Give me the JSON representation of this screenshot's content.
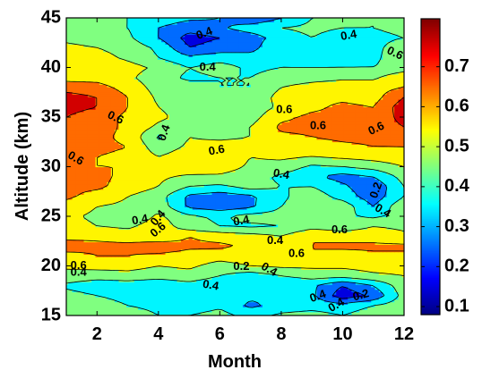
{
  "chart_data": {
    "type": "heatmap",
    "subtype": "filled-contour",
    "title": "",
    "xlabel": "Month",
    "ylabel": "Altitude (km)",
    "xlim": [
      1,
      12
    ],
    "ylim": [
      15,
      45
    ],
    "xticks": [
      "2",
      "4",
      "6",
      "8",
      "10",
      "12"
    ],
    "yticks": [
      "15",
      "20",
      "25",
      "30",
      "35",
      "40",
      "45"
    ],
    "colorbar": {
      "colormap": "jet",
      "range": [
        0.08,
        0.82
      ],
      "ticks": [
        "0.1",
        "0.2",
        "0.3",
        "0.4",
        "0.5",
        "0.6",
        "0.7"
      ]
    },
    "levels": [
      0.1,
      0.2,
      0.3,
      0.4,
      0.5,
      0.6,
      0.7
    ],
    "months": [
      1,
      2,
      3,
      4,
      5,
      6,
      7,
      8,
      9,
      10,
      11,
      12
    ],
    "altitudes": [
      15,
      16,
      17,
      18,
      19,
      20,
      21,
      22,
      23,
      24,
      25,
      26,
      27,
      28,
      29,
      30,
      31,
      32,
      33,
      34,
      35,
      36,
      37,
      38,
      39,
      40,
      41,
      42,
      43,
      44,
      45
    ],
    "values": [
      [
        0.48,
        0.48,
        0.44,
        0.4,
        0.4,
        0.44,
        0.36,
        0.42,
        0.44,
        0.4,
        0.46,
        0.48
      ],
      [
        0.48,
        0.46,
        0.4,
        0.38,
        0.34,
        0.38,
        0.28,
        0.34,
        0.36,
        0.34,
        0.4,
        0.46
      ],
      [
        0.44,
        0.4,
        0.36,
        0.34,
        0.3,
        0.34,
        0.32,
        0.3,
        0.32,
        0.14,
        0.22,
        0.44
      ],
      [
        0.38,
        0.34,
        0.34,
        0.32,
        0.36,
        0.32,
        0.3,
        0.3,
        0.32,
        0.2,
        0.3,
        0.46
      ],
      [
        0.46,
        0.44,
        0.46,
        0.44,
        0.46,
        0.4,
        0.34,
        0.4,
        0.44,
        0.44,
        0.48,
        0.5
      ],
      [
        0.52,
        0.54,
        0.54,
        0.5,
        0.52,
        0.46,
        0.5,
        0.52,
        0.52,
        0.52,
        0.54,
        0.54
      ],
      [
        0.56,
        0.6,
        0.6,
        0.58,
        0.56,
        0.54,
        0.56,
        0.6,
        0.6,
        0.56,
        0.58,
        0.58
      ],
      [
        0.66,
        0.62,
        0.62,
        0.66,
        0.62,
        0.62,
        0.58,
        0.56,
        0.6,
        0.62,
        0.62,
        0.62
      ],
      [
        0.56,
        0.58,
        0.56,
        0.52,
        0.6,
        0.56,
        0.54,
        0.5,
        0.6,
        0.56,
        0.56,
        0.52
      ],
      [
        0.54,
        0.5,
        0.48,
        0.56,
        0.44,
        0.4,
        0.38,
        0.4,
        0.46,
        0.44,
        0.5,
        0.48
      ],
      [
        0.52,
        0.48,
        0.4,
        0.52,
        0.42,
        0.38,
        0.44,
        0.44,
        0.42,
        0.42,
        0.38,
        0.44
      ],
      [
        0.56,
        0.5,
        0.48,
        0.46,
        0.28,
        0.24,
        0.28,
        0.4,
        0.46,
        0.46,
        0.3,
        0.48
      ],
      [
        0.62,
        0.56,
        0.5,
        0.44,
        0.28,
        0.24,
        0.28,
        0.38,
        0.46,
        0.36,
        0.24,
        0.4
      ],
      [
        0.62,
        0.62,
        0.56,
        0.5,
        0.4,
        0.38,
        0.44,
        0.4,
        0.4,
        0.32,
        0.22,
        0.4
      ],
      [
        0.64,
        0.62,
        0.58,
        0.52,
        0.48,
        0.48,
        0.44,
        0.38,
        0.32,
        0.26,
        0.3,
        0.44
      ],
      [
        0.62,
        0.6,
        0.6,
        0.56,
        0.58,
        0.56,
        0.48,
        0.46,
        0.38,
        0.4,
        0.44,
        0.5
      ],
      [
        0.62,
        0.6,
        0.58,
        0.5,
        0.56,
        0.6,
        0.5,
        0.52,
        0.5,
        0.52,
        0.54,
        0.56
      ],
      [
        0.64,
        0.62,
        0.6,
        0.44,
        0.52,
        0.54,
        0.54,
        0.56,
        0.56,
        0.58,
        0.6,
        0.6
      ],
      [
        0.66,
        0.62,
        0.58,
        0.38,
        0.5,
        0.48,
        0.5,
        0.58,
        0.6,
        0.62,
        0.62,
        0.64
      ],
      [
        0.68,
        0.64,
        0.58,
        0.48,
        0.46,
        0.48,
        0.5,
        0.62,
        0.62,
        0.64,
        0.64,
        0.7
      ],
      [
        0.7,
        0.64,
        0.58,
        0.52,
        0.46,
        0.46,
        0.46,
        0.58,
        0.62,
        0.62,
        0.62,
        0.74
      ],
      [
        0.74,
        0.7,
        0.6,
        0.5,
        0.46,
        0.42,
        0.44,
        0.52,
        0.58,
        0.62,
        0.6,
        0.76
      ],
      [
        0.74,
        0.7,
        0.6,
        0.48,
        0.44,
        0.42,
        0.42,
        0.54,
        0.58,
        0.58,
        0.56,
        0.7
      ],
      [
        0.66,
        0.64,
        0.56,
        0.46,
        0.44,
        0.4,
        0.4,
        0.5,
        0.54,
        0.56,
        0.56,
        0.6
      ],
      [
        0.56,
        0.56,
        0.52,
        0.44,
        0.38,
        0.4,
        0.4,
        0.44,
        0.46,
        0.48,
        0.48,
        0.58
      ],
      [
        0.6,
        0.58,
        0.54,
        0.48,
        0.4,
        0.44,
        0.38,
        0.4,
        0.4,
        0.4,
        0.4,
        0.44
      ],
      [
        0.54,
        0.54,
        0.48,
        0.4,
        0.32,
        0.36,
        0.34,
        0.38,
        0.34,
        0.36,
        0.38,
        0.46
      ],
      [
        0.52,
        0.5,
        0.46,
        0.38,
        0.2,
        0.24,
        0.26,
        0.4,
        0.34,
        0.36,
        0.38,
        0.44
      ],
      [
        0.48,
        0.46,
        0.42,
        0.3,
        0.16,
        0.2,
        0.24,
        0.36,
        0.4,
        0.36,
        0.38,
        0.4
      ],
      [
        0.46,
        0.44,
        0.4,
        0.3,
        0.24,
        0.28,
        0.36,
        0.4,
        0.42,
        0.4,
        0.4,
        0.42
      ],
      [
        0.42,
        0.42,
        0.4,
        0.36,
        0.32,
        0.3,
        0.2,
        0.3,
        0.4,
        0.42,
        0.4,
        0.42
      ]
    ],
    "contour_labels": [
      {
        "text": "0.4",
        "x": 5.5,
        "y": 43.4,
        "angle": 20
      },
      {
        "text": "0.4",
        "x": 10.2,
        "y": 43.2,
        "angle": 10
      },
      {
        "text": "0.6",
        "x": 11.7,
        "y": 41.4,
        "angle": -25
      },
      {
        "text": "0.4",
        "x": 5.6,
        "y": 40.0,
        "angle": 0
      },
      {
        "text": "0.6",
        "x": 2.6,
        "y": 34.9,
        "angle": -25
      },
      {
        "text": "0.4",
        "x": 4.2,
        "y": 33.4,
        "angle": 70
      },
      {
        "text": "0.6",
        "x": 8.1,
        "y": 35.7,
        "angle": 0
      },
      {
        "text": "0.6",
        "x": 9.2,
        "y": 34.1,
        "angle": 0
      },
      {
        "text": "0.6",
        "x": 11.1,
        "y": 33.8,
        "angle": 25
      },
      {
        "text": "0.6",
        "x": 5.9,
        "y": 31.6,
        "angle": 10
      },
      {
        "text": "0.6",
        "x": 1.3,
        "y": 30.8,
        "angle": -30
      },
      {
        "text": "0.4",
        "x": 8.0,
        "y": 29.2,
        "angle": -10
      },
      {
        "text": "0.2",
        "x": 11.1,
        "y": 27.6,
        "angle": 70
      },
      {
        "text": "0.4",
        "x": 11.3,
        "y": 25.5,
        "angle": -30
      },
      {
        "text": "0.4",
        "x": 3.4,
        "y": 24.6,
        "angle": 10
      },
      {
        "text": "0.4",
        "x": 4.0,
        "y": 24.8,
        "angle": 50
      },
      {
        "text": "0.6",
        "x": 4.0,
        "y": 23.6,
        "angle": 40
      },
      {
        "text": "0.4",
        "x": 6.7,
        "y": 24.5,
        "angle": 10
      },
      {
        "text": "0.4",
        "x": 7.8,
        "y": 22.5,
        "angle": 0
      },
      {
        "text": "0.6",
        "x": 9.9,
        "y": 23.6,
        "angle": 0
      },
      {
        "text": "0.6",
        "x": 8.5,
        "y": 21.2,
        "angle": 0
      },
      {
        "text": "0.6",
        "x": 1.4,
        "y": 20.0,
        "angle": 0
      },
      {
        "text": "0.4",
        "x": 1.4,
        "y": 19.3,
        "angle": 0
      },
      {
        "text": "0.2",
        "x": 6.7,
        "y": 19.9,
        "angle": 0
      },
      {
        "text": "0.4",
        "x": 7.6,
        "y": 19.6,
        "angle": -30
      },
      {
        "text": "0.4",
        "x": 5.7,
        "y": 18.0,
        "angle": -10
      },
      {
        "text": "0.4",
        "x": 9.2,
        "y": 16.9,
        "angle": 20
      },
      {
        "text": "0.2",
        "x": 10.6,
        "y": 17.0,
        "angle": 15
      },
      {
        "text": "0.4",
        "x": 9.8,
        "y": 16.0,
        "angle": 30
      }
    ]
  }
}
